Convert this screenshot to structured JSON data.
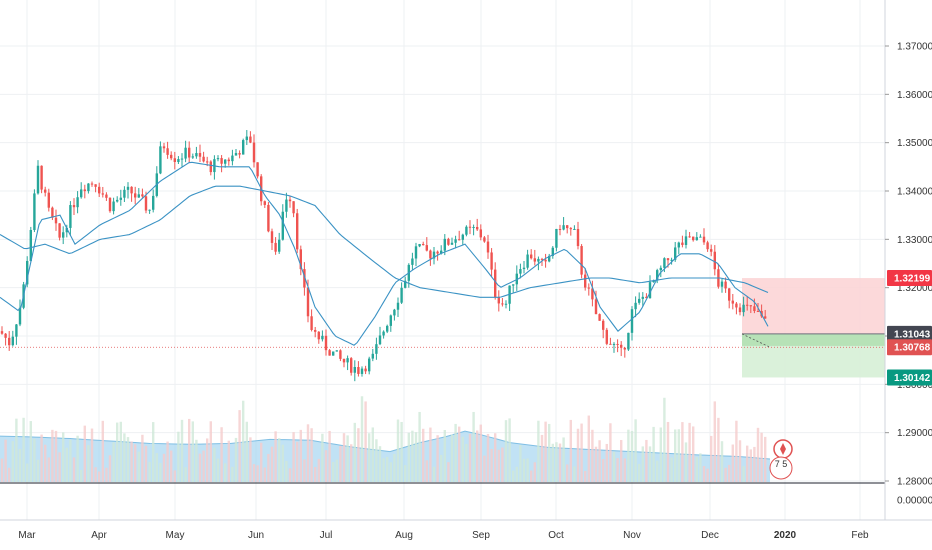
{
  "chart_data": {
    "type": "candlestick",
    "title": "",
    "xlabel": "",
    "ylabel": "",
    "price_axis": {
      "range": [
        1.2776,
        1.3772
      ],
      "ticks": [
        "1.37000",
        "1.36000",
        "1.35000",
        "1.34000",
        "1.33000",
        "1.32000",
        "1.31000",
        "1.30000",
        "1.29000",
        "1.28000"
      ]
    },
    "volume_axis": {
      "ticks": [
        "0.00000"
      ]
    },
    "time_axis": {
      "labels": [
        "Mar",
        "Apr",
        "May",
        "Jun",
        "Jul",
        "Aug",
        "Sep",
        "Oct",
        "Nov",
        "Dec",
        "2020",
        "Feb"
      ]
    },
    "price_labels": [
      {
        "value": "1.32199",
        "color": "#f23645",
        "role": "stop-loss"
      },
      {
        "value": "1.31043",
        "color": "#434651",
        "role": "entry"
      },
      {
        "value": "1.30768",
        "color": "#e05252",
        "role": "last-price"
      },
      {
        "value": "1.30142",
        "color": "#089981",
        "role": "take-profit"
      }
    ],
    "close_path": [
      [
        0,
        1.311
      ],
      [
        10,
        1.3085
      ],
      [
        22,
        1.3175
      ],
      [
        38,
        1.3445
      ],
      [
        48,
        1.336
      ],
      [
        60,
        1.33
      ],
      [
        80,
        1.341
      ],
      [
        95,
        1.342
      ],
      [
        110,
        1.337
      ],
      [
        130,
        1.34
      ],
      [
        150,
        1.336
      ],
      [
        162,
        1.35
      ],
      [
        175,
        1.347
      ],
      [
        190,
        1.348
      ],
      [
        210,
        1.345
      ],
      [
        232,
        1.347
      ],
      [
        250,
        1.351
      ],
      [
        258,
        1.342
      ],
      [
        268,
        1.333
      ],
      [
        276,
        1.326
      ],
      [
        285,
        1.339
      ],
      [
        292,
        1.339
      ],
      [
        300,
        1.324
      ],
      [
        310,
        1.312
      ],
      [
        325,
        1.308
      ],
      [
        340,
        1.305
      ],
      [
        358,
        1.303
      ],
      [
        372,
        1.305
      ],
      [
        385,
        1.312
      ],
      [
        400,
        1.319
      ],
      [
        415,
        1.328
      ],
      [
        430,
        1.327
      ],
      [
        445,
        1.329
      ],
      [
        460,
        1.331
      ],
      [
        475,
        1.332
      ],
      [
        485,
        1.33
      ],
      [
        495,
        1.319
      ],
      [
        505,
        1.316
      ],
      [
        515,
        1.323
      ],
      [
        530,
        1.327
      ],
      [
        545,
        1.324
      ],
      [
        560,
        1.333
      ],
      [
        575,
        1.331
      ],
      [
        582,
        1.323
      ],
      [
        595,
        1.315
      ],
      [
        605,
        1.31
      ],
      [
        622,
        1.306
      ],
      [
        632,
        1.315
      ],
      [
        650,
        1.32
      ],
      [
        665,
        1.325
      ],
      [
        680,
        1.329
      ],
      [
        695,
        1.33
      ],
      [
        708,
        1.329
      ],
      [
        718,
        1.321
      ],
      [
        730,
        1.318
      ],
      [
        742,
        1.316
      ],
      [
        755,
        1.315
      ],
      [
        765,
        1.313
      ],
      [
        770,
        1.3076
      ]
    ],
    "ma_fast": [
      [
        0,
        1.318
      ],
      [
        20,
        1.315
      ],
      [
        40,
        1.334
      ],
      [
        60,
        1.335
      ],
      [
        75,
        1.329
      ],
      [
        100,
        1.333
      ],
      [
        130,
        1.336
      ],
      [
        160,
        1.342
      ],
      [
        190,
        1.346
      ],
      [
        220,
        1.345
      ],
      [
        250,
        1.345
      ],
      [
        265,
        1.339
      ],
      [
        280,
        1.335
      ],
      [
        295,
        1.328
      ],
      [
        315,
        1.316
      ],
      [
        335,
        1.31
      ],
      [
        355,
        1.308
      ],
      [
        375,
        1.314
      ],
      [
        395,
        1.321
      ],
      [
        415,
        1.324
      ],
      [
        440,
        1.327
      ],
      [
        465,
        1.329
      ],
      [
        485,
        1.324
      ],
      [
        500,
        1.32
      ],
      [
        520,
        1.322
      ],
      [
        545,
        1.326
      ],
      [
        565,
        1.328
      ],
      [
        585,
        1.324
      ],
      [
        600,
        1.316
      ],
      [
        618,
        1.311
      ],
      [
        640,
        1.315
      ],
      [
        660,
        1.323
      ],
      [
        680,
        1.327
      ],
      [
        700,
        1.327
      ],
      [
        718,
        1.325
      ],
      [
        735,
        1.32
      ],
      [
        755,
        1.317
      ],
      [
        768,
        1.312
      ]
    ],
    "ma_slow": [
      [
        0,
        1.331
      ],
      [
        25,
        1.328
      ],
      [
        45,
        1.329
      ],
      [
        70,
        1.327
      ],
      [
        100,
        1.33
      ],
      [
        130,
        1.331
      ],
      [
        160,
        1.334
      ],
      [
        190,
        1.339
      ],
      [
        215,
        1.341
      ],
      [
        240,
        1.341
      ],
      [
        265,
        1.34
      ],
      [
        290,
        1.339
      ],
      [
        315,
        1.337
      ],
      [
        340,
        1.331
      ],
      [
        370,
        1.326
      ],
      [
        395,
        1.322
      ],
      [
        420,
        1.32
      ],
      [
        450,
        1.319
      ],
      [
        480,
        1.318
      ],
      [
        500,
        1.318
      ],
      [
        530,
        1.32
      ],
      [
        560,
        1.321
      ],
      [
        590,
        1.322
      ],
      [
        610,
        1.322
      ],
      [
        640,
        1.321
      ],
      [
        670,
        1.322
      ],
      [
        700,
        1.322
      ],
      [
        720,
        1.322
      ],
      [
        745,
        1.321
      ],
      [
        768,
        1.319
      ]
    ],
    "volume_ma": [
      [
        0,
        0.56
      ],
      [
        30,
        0.55
      ],
      [
        70,
        0.53
      ],
      [
        110,
        0.5
      ],
      [
        150,
        0.47
      ],
      [
        190,
        0.46
      ],
      [
        230,
        0.47
      ],
      [
        270,
        0.52
      ],
      [
        310,
        0.51
      ],
      [
        350,
        0.43
      ],
      [
        390,
        0.37
      ],
      [
        420,
        0.48
      ],
      [
        445,
        0.55
      ],
      [
        465,
        0.62
      ],
      [
        480,
        0.58
      ],
      [
        510,
        0.48
      ],
      [
        550,
        0.42
      ],
      [
        600,
        0.39
      ],
      [
        650,
        0.36
      ],
      [
        700,
        0.33
      ],
      [
        740,
        0.31
      ],
      [
        770,
        0.28
      ]
    ],
    "trade_box": {
      "entry": 1.31043,
      "stop": 1.32199,
      "target": 1.30142
    },
    "grid": true
  },
  "colors": {
    "up": "#26a69a",
    "down": "#ef5350",
    "ma_line": "#3a92c4",
    "volume_area": "#9fd3f0",
    "stop_zone": "#fbd2d4",
    "target_zone": "#d6efd6",
    "target_zone_strong": "#a8dba8"
  },
  "badge": {
    "icon": "canada-flag-icon",
    "label": "7 5"
  }
}
